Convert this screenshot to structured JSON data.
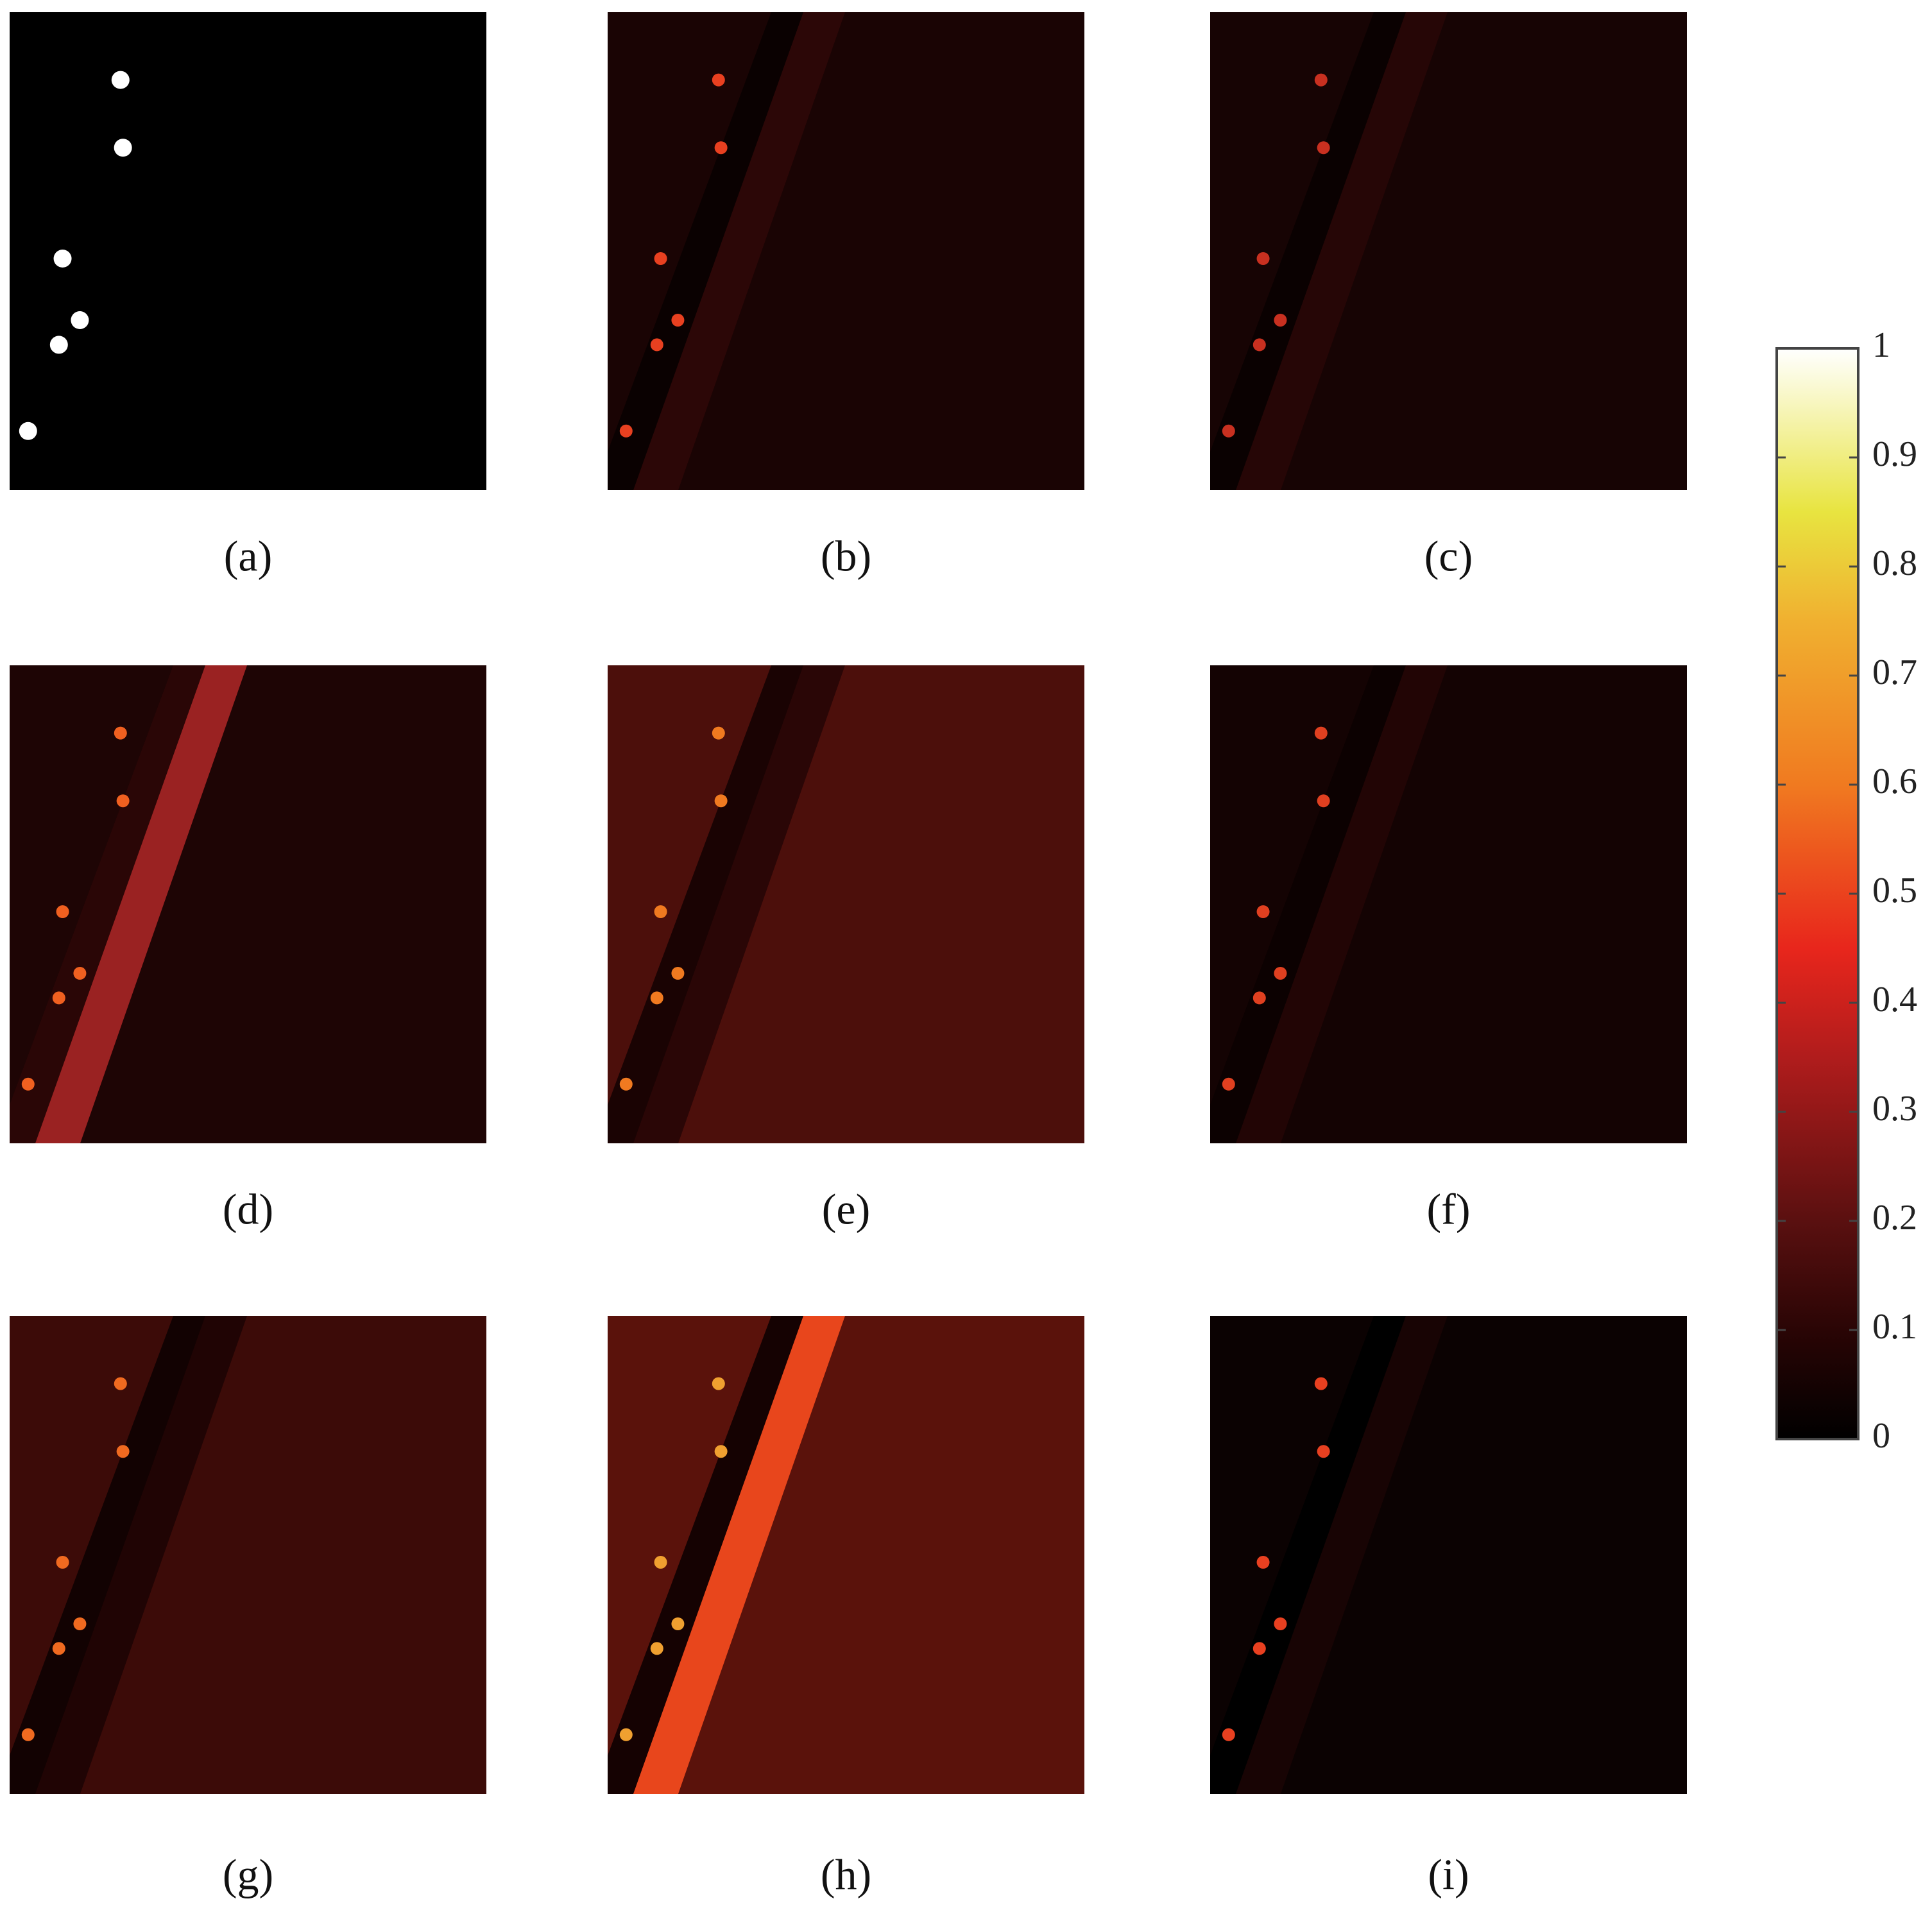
{
  "panels": {
    "labels": [
      "(a)",
      "(b)",
      "(c)",
      "(d)",
      "(e)",
      "(f)",
      "(g)",
      "(h)",
      "(i)"
    ]
  },
  "colorbar": {
    "ticks": [
      0,
      0.1,
      0.2,
      0.3,
      0.4,
      0.5,
      0.6,
      0.7,
      0.8,
      0.9,
      1
    ],
    "lim": [
      0,
      1
    ]
  }
}
